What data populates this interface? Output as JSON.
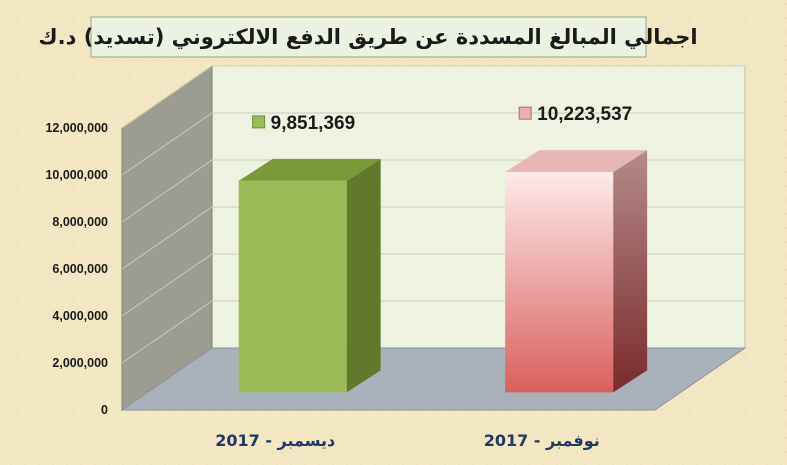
{
  "colors": {
    "background": "#f3e7c3",
    "title_box": "#ecf2e1",
    "plot_back_wall": "#eef3e1",
    "side_wall": "#9c9c90",
    "floor": "#a9b2bb",
    "category_text": "#1f3864"
  },
  "chart_data": {
    "type": "bar",
    "title": "اجمالي المبالغ المسددة عن طريق الدفع الالكتروني (تسديد) د.ك",
    "categories": [
      "ديسمبر - 2017",
      "نوفمبر - 2017"
    ],
    "series": [
      {
        "values": [
          9851369,
          10223537
        ]
      }
    ],
    "data_labels": [
      "9,851,369",
      "10,223,537"
    ],
    "bar_colors": [
      {
        "front": "#9bbb59",
        "top": "#7a9a3a",
        "side": "#62792c"
      },
      {
        "front": "#ec9a9a",
        "top": "#e7b7b7",
        "side": "#8c3b3b"
      }
    ],
    "y_ticks": [
      "0",
      "2,000,000",
      "4,000,000",
      "6,000,000",
      "8,000,000",
      "10,000,000",
      "12,000,000"
    ],
    "ylim": [
      0,
      12000000
    ],
    "grid": true,
    "three_d": true,
    "legend": "none"
  }
}
